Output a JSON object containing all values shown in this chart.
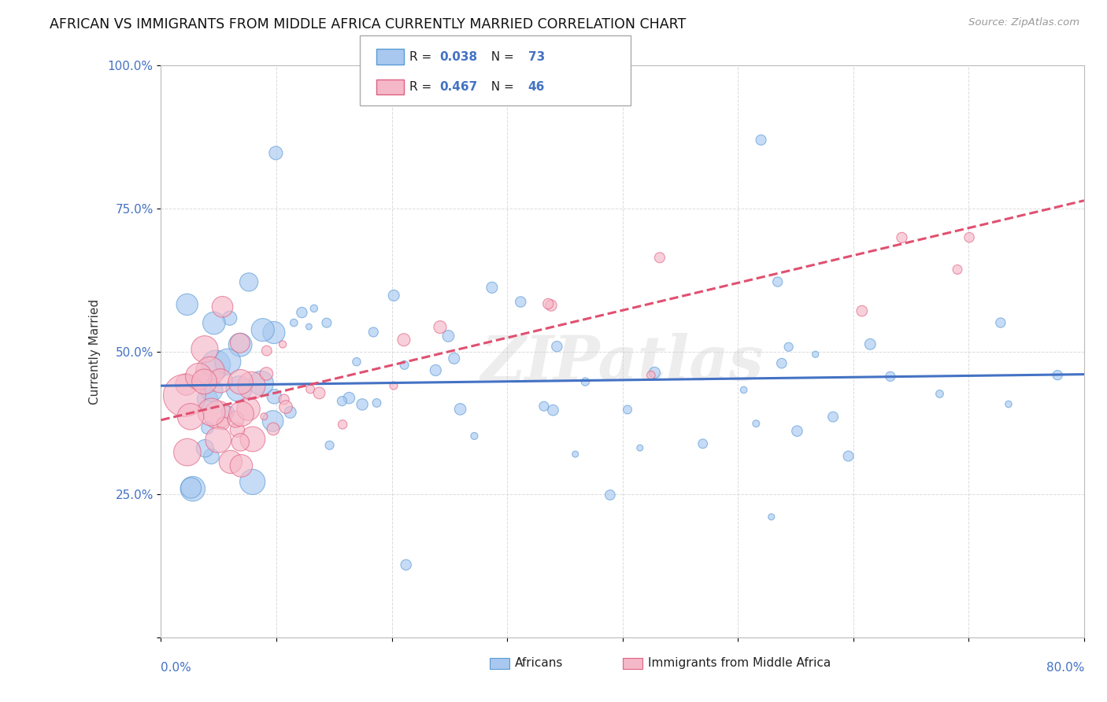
{
  "title": "AFRICAN VS IMMIGRANTS FROM MIDDLE AFRICA CURRENTLY MARRIED CORRELATION CHART",
  "source": "Source: ZipAtlas.com",
  "ylabel": "Currently Married",
  "xlim": [
    0.0,
    80.0
  ],
  "ylim": [
    0.0,
    100.0
  ],
  "yticks": [
    0.0,
    25.0,
    50.0,
    75.0,
    100.0
  ],
  "ytick_labels": [
    "",
    "25.0%",
    "50.0%",
    "75.0%",
    "100.0%"
  ],
  "xtick_left": "0.0%",
  "xtick_right": "80.0%",
  "legend_r1": "0.038",
  "legend_n1": "73",
  "legend_r2": "0.467",
  "legend_n2": "46",
  "color_blue_fill": "#A8C8F0",
  "color_blue_edge": "#5B9BD5",
  "color_blue_line": "#4472C4",
  "color_pink_fill": "#F5B8C8",
  "color_pink_edge": "#E06080",
  "color_pink_line": "#E05070",
  "color_text_rv": "#4472C4",
  "color_text_nv": "#4472C4",
  "watermark_text": "ZIPatlas",
  "watermark_color": "#CCCCCC",
  "background_color": "#FFFFFF",
  "grid_color": "#CCCCCC",
  "blue_intercept": 44.0,
  "blue_slope": 0.025,
  "pink_intercept": 38.0,
  "pink_slope": 0.48,
  "blue_seed": 42,
  "pink_seed": 99
}
